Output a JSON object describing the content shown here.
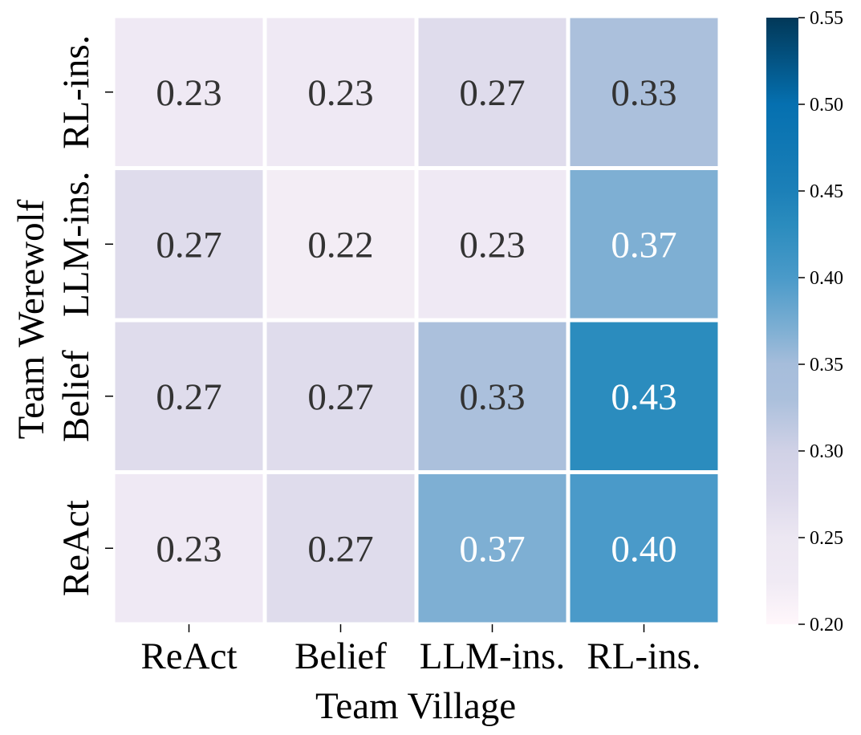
{
  "chart_data": {
    "type": "heatmap",
    "title": "",
    "xlabel": "Team Village",
    "ylabel": "Team Werewolf",
    "x_categories": [
      "ReAct",
      "Belief",
      "LLM-ins.",
      "RL-ins."
    ],
    "y_categories": [
      "RL-ins.",
      "LLM-ins.",
      "Belief",
      "ReAct"
    ],
    "values": [
      [
        0.23,
        0.23,
        0.27,
        0.33
      ],
      [
        0.27,
        0.22,
        0.23,
        0.37
      ],
      [
        0.27,
        0.27,
        0.33,
        0.43
      ],
      [
        0.23,
        0.27,
        0.37,
        0.4
      ]
    ],
    "value_format_decimals": 2,
    "colorbar": {
      "min": 0.2,
      "max": 0.55,
      "ticks": [
        "0.20",
        "0.25",
        "0.30",
        "0.35",
        "0.40",
        "0.45",
        "0.50",
        "0.55"
      ]
    },
    "colormap_stops": [
      {
        "v": 0.2,
        "color": "#fff7fb"
      },
      {
        "v": 0.225,
        "color": "#f0eaf4"
      },
      {
        "v": 0.25,
        "color": "#ece7f2"
      },
      {
        "v": 0.275,
        "color": "#dcd9eb"
      },
      {
        "v": 0.3,
        "color": "#d0d1e6"
      },
      {
        "v": 0.33,
        "color": "#abc0dc"
      },
      {
        "v": 0.35,
        "color": "#a6bddb"
      },
      {
        "v": 0.37,
        "color": "#7eafd3"
      },
      {
        "v": 0.4,
        "color": "#4a9ac9"
      },
      {
        "v": 0.43,
        "color": "#2b8cbe"
      },
      {
        "v": 0.45,
        "color": "#1c80b8"
      },
      {
        "v": 0.5,
        "color": "#0570b0"
      },
      {
        "v": 0.55,
        "color": "#023858"
      }
    ],
    "text_color_dark": "#333333",
    "text_color_light": "#ffffff",
    "light_text_threshold": 0.35,
    "grid_line_color": "#ffffff",
    "legend": "colorbar-right"
  }
}
